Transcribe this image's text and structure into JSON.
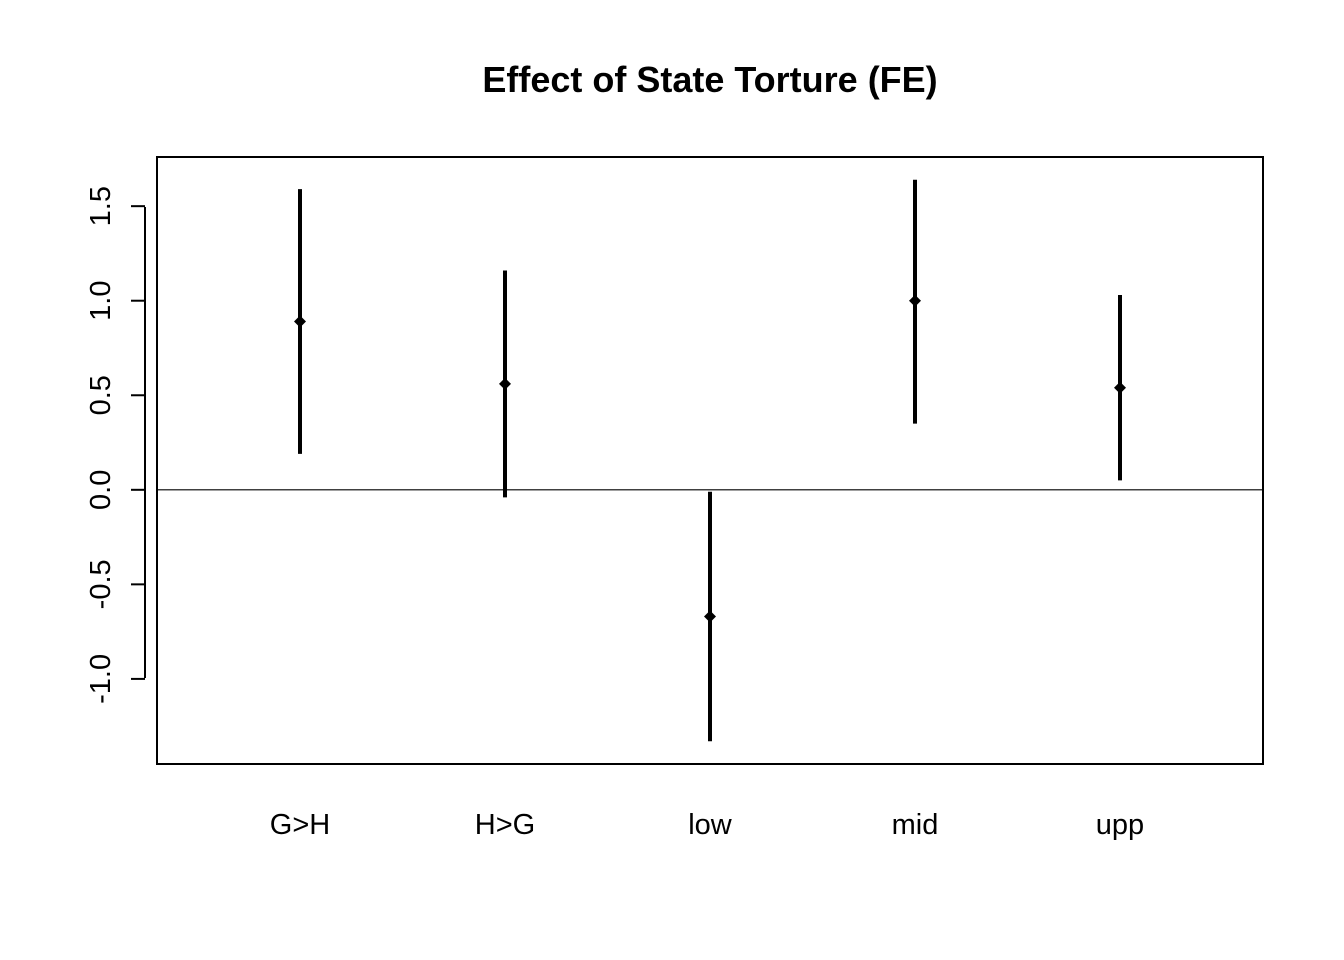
{
  "chart_data": {
    "type": "errorbar",
    "title": "Effect of State Torture (FE)",
    "xlabel": "",
    "ylabel": "",
    "categories": [
      "G>H",
      "H>G",
      "low",
      "mid",
      "upp"
    ],
    "series": [
      {
        "estimate": [
          0.89,
          0.56,
          -0.67,
          1.0,
          0.54
        ],
        "lower": [
          0.19,
          -0.04,
          -1.33,
          0.35,
          0.05
        ],
        "upper": [
          1.59,
          1.16,
          -0.01,
          1.64,
          1.03
        ]
      }
    ],
    "yticks": [
      "-1.0",
      "-0.5",
      "0.0",
      "0.5",
      "1.0",
      "1.5"
    ],
    "ytick_values": [
      -1.0,
      -0.5,
      0.0,
      0.5,
      1.0,
      1.5
    ],
    "reference_line": 0,
    "ylim": [
      -1.45,
      1.76
    ],
    "grid": false,
    "legend": "none",
    "colors": {
      "mark": "#000000",
      "frame": "#000000"
    }
  }
}
